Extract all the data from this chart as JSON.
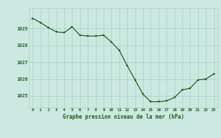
{
  "hours": [
    0,
    1,
    2,
    3,
    4,
    5,
    6,
    7,
    8,
    9,
    10,
    11,
    12,
    13,
    14,
    15,
    16,
    17,
    18,
    19,
    20,
    21,
    22,
    23
  ],
  "pressure": [
    1029.6,
    1029.35,
    1029.05,
    1028.8,
    1028.75,
    1029.1,
    1028.6,
    1028.55,
    1028.55,
    1028.6,
    1028.2,
    1027.7,
    1026.8,
    1025.95,
    1025.1,
    1024.65,
    1024.65,
    1024.7,
    1024.9,
    1025.35,
    1025.45,
    1025.95,
    1026.0,
    1026.3
  ],
  "line_color": "#1a5c1a",
  "marker_color": "#1a5c1a",
  "bg_color": "#cce8e0",
  "grid_color": "#aad4c8",
  "text_color": "#1a5c1a",
  "xlabel": "Graphe pression niveau de la mer (hPa)",
  "ylim_min": 1024.3,
  "ylim_max": 1030.2,
  "yticks": [
    1025,
    1026,
    1027,
    1028,
    1029
  ],
  "xlim_min": -0.5,
  "xlim_max": 23.5
}
